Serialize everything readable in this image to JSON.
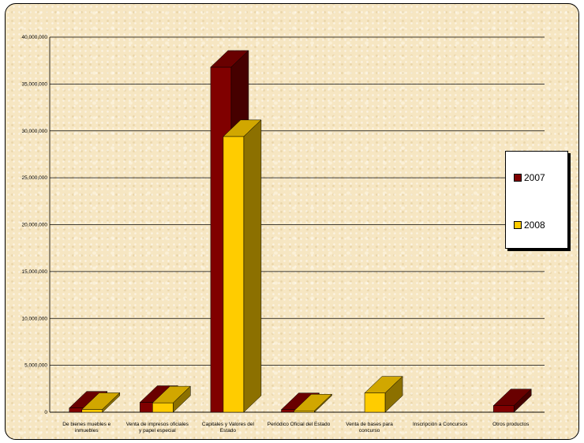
{
  "chart_data": {
    "type": "bar",
    "categories": [
      [
        "De bienes muebles e",
        "inmuebles"
      ],
      [
        "Venta de impresos oficiales",
        "y papel especial"
      ],
      [
        "Capitales y Valores del",
        "Estado"
      ],
      [
        "Periódico Oficial del Estado"
      ],
      [
        "Venta de bases para",
        "concurso"
      ],
      [
        "Inscripción a Concursos"
      ],
      [
        "Otros productos"
      ]
    ],
    "series": [
      {
        "name": "2007",
        "color": "#800000",
        "values": [
          450000,
          1050000,
          36800000,
          280000,
          0,
          0,
          700000
        ]
      },
      {
        "name": "2008",
        "color": "#ffcc00",
        "values": [
          300000,
          1000000,
          29400000,
          150000,
          2050000,
          0,
          0
        ]
      }
    ],
    "ylim": [
      0,
      40000000
    ],
    "yticks": [
      0,
      5000000,
      10000000,
      15000000,
      20000000,
      25000000,
      30000000,
      35000000,
      40000000
    ],
    "ytick_labels": [
      "0",
      "5,000,000",
      "10,000,000",
      "15,000,000",
      "20,000,000",
      "25,000,000",
      "30,000,000",
      "35,000,000",
      "40,000,000"
    ],
    "grid": true,
    "legend_position": "right",
    "title": "",
    "xlabel": "",
    "ylabel": ""
  }
}
